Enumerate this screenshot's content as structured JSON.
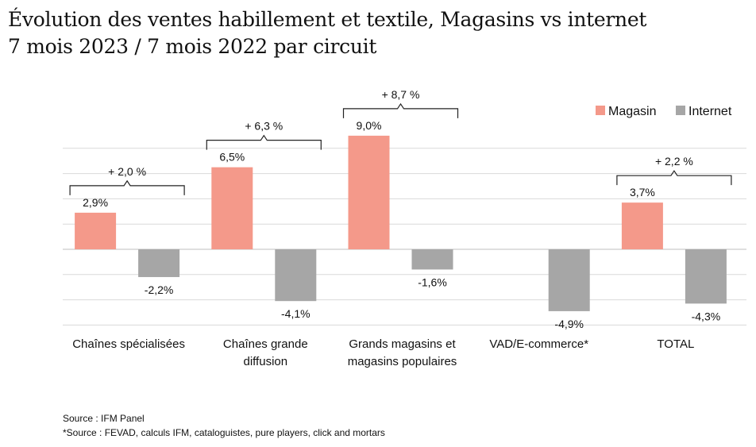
{
  "title_line1": "Évolution des ventes habillement et textile, Magasins vs internet",
  "title_line2": "7 mois 2023 / 7 mois 2022 par circuit",
  "colors": {
    "magasin": "#f4998a",
    "internet": "#a6a6a6",
    "grid": "#d9d9d9",
    "bracket": "#222222"
  },
  "chart_data": {
    "type": "bar",
    "categories": [
      [
        "Chaînes spécialisées"
      ],
      [
        "Chaînes grande",
        "diffusion"
      ],
      [
        "Grands magasins et",
        "magasins populaires"
      ],
      [
        "VAD/E-commerce*"
      ],
      [
        "TOTAL"
      ]
    ],
    "series": [
      {
        "name": "Magasin",
        "values": [
          2.9,
          6.5,
          9.0,
          null,
          3.7
        ],
        "labels": [
          "2,9%",
          "6,5%",
          "9,0%",
          "",
          "3,7%"
        ]
      },
      {
        "name": "Internet",
        "values": [
          -2.2,
          -4.1,
          -1.6,
          -4.9,
          -4.3
        ],
        "labels": [
          "-2,2%",
          "-4,1%",
          "-1,6%",
          "-4,9%",
          "-4,3%"
        ]
      }
    ],
    "annotations": [
      "+ 2,0 %",
      "+ 6,3 %",
      "+ 8,7 %",
      null,
      "+ 2,2 %"
    ],
    "ylim": [
      -6,
      10
    ],
    "grid": true,
    "legend_position": "top-right",
    "xlabel": "",
    "ylabel": ""
  },
  "footer": {
    "source1": "Source : IFM Panel",
    "source2": "*Source : FEVAD, calculs IFM, cataloguistes, pure players, click and mortars"
  }
}
